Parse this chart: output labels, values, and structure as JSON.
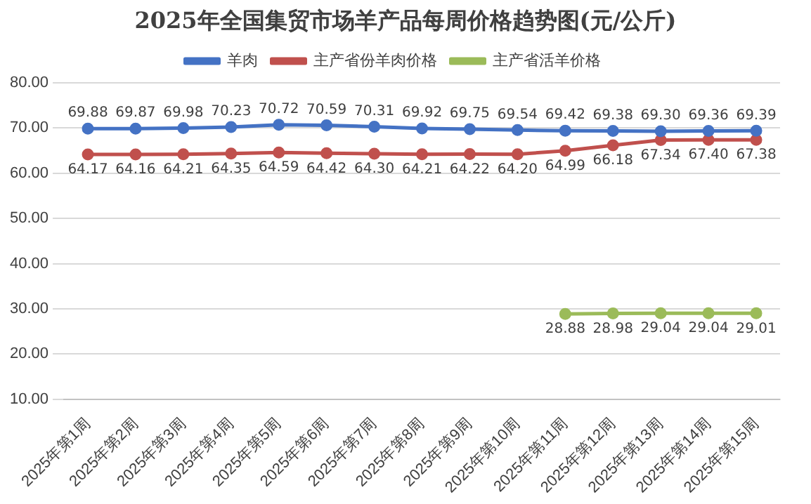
{
  "chart_data": {
    "type": "line",
    "title": "2025年全国集贸市场羊产品每周价格趋势图(元/公斤)",
    "categories": [
      "2025年第1周",
      "2025年第2周",
      "2025年第3周",
      "2025年第4周",
      "2025年第5周",
      "2025年第6周",
      "2025年第7周",
      "2025年第8周",
      "2025年第9周",
      "2025年第10周",
      "2025年第11周",
      "2025年第12周",
      "2025年第13周",
      "2025年第14周",
      "2025年第15周"
    ],
    "series": [
      {
        "name": "羊肉",
        "color": "#4472c4",
        "values": [
          69.88,
          69.87,
          69.98,
          70.23,
          70.72,
          70.59,
          70.31,
          69.92,
          69.75,
          69.54,
          69.42,
          69.38,
          69.3,
          69.36,
          69.39
        ],
        "value_labels": [
          "69.88",
          "69.87",
          "69.98",
          "70.23",
          "70.72",
          "70.59",
          "70.31",
          "69.92",
          "69.75",
          "69.54",
          "69.42",
          "69.38",
          "69.30",
          "69.36",
          "69.39"
        ]
      },
      {
        "name": "主产省份羊肉价格",
        "color": "#c0504d",
        "values": [
          64.17,
          64.16,
          64.21,
          64.35,
          64.59,
          64.42,
          64.3,
          64.21,
          64.22,
          64.2,
          64.99,
          66.18,
          67.34,
          67.4,
          67.38
        ],
        "value_labels": [
          "64.17",
          "64.16",
          "64.21",
          "64.35",
          "64.59",
          "64.42",
          "64.30",
          "64.21",
          "64.22",
          "64.20",
          "64.99",
          "66.18",
          "67.34",
          "67.40",
          "67.38"
        ]
      },
      {
        "name": "主产省活羊价格",
        "color": "#9bbb59",
        "values": [
          null,
          null,
          null,
          null,
          null,
          null,
          null,
          null,
          null,
          null,
          28.88,
          28.98,
          29.04,
          29.04,
          29.01
        ],
        "value_labels": [
          null,
          null,
          null,
          null,
          null,
          null,
          null,
          null,
          null,
          null,
          "28.88",
          "28.98",
          "29.04",
          "29.04",
          "29.01"
        ]
      }
    ],
    "ylim": [
      10,
      80
    ],
    "yticks": [
      {
        "value": 10,
        "label": "10.00"
      },
      {
        "value": 20,
        "label": "20.00"
      },
      {
        "value": 30,
        "label": "30.00"
      },
      {
        "value": 40,
        "label": "40.00"
      },
      {
        "value": 50,
        "label": "50.00"
      },
      {
        "value": 60,
        "label": "60.00"
      },
      {
        "value": 70,
        "label": "70.00"
      },
      {
        "value": 80,
        "label": "80.00"
      }
    ],
    "grid": "y",
    "legend": "top",
    "marker": "circle",
    "line_style": "solid"
  }
}
